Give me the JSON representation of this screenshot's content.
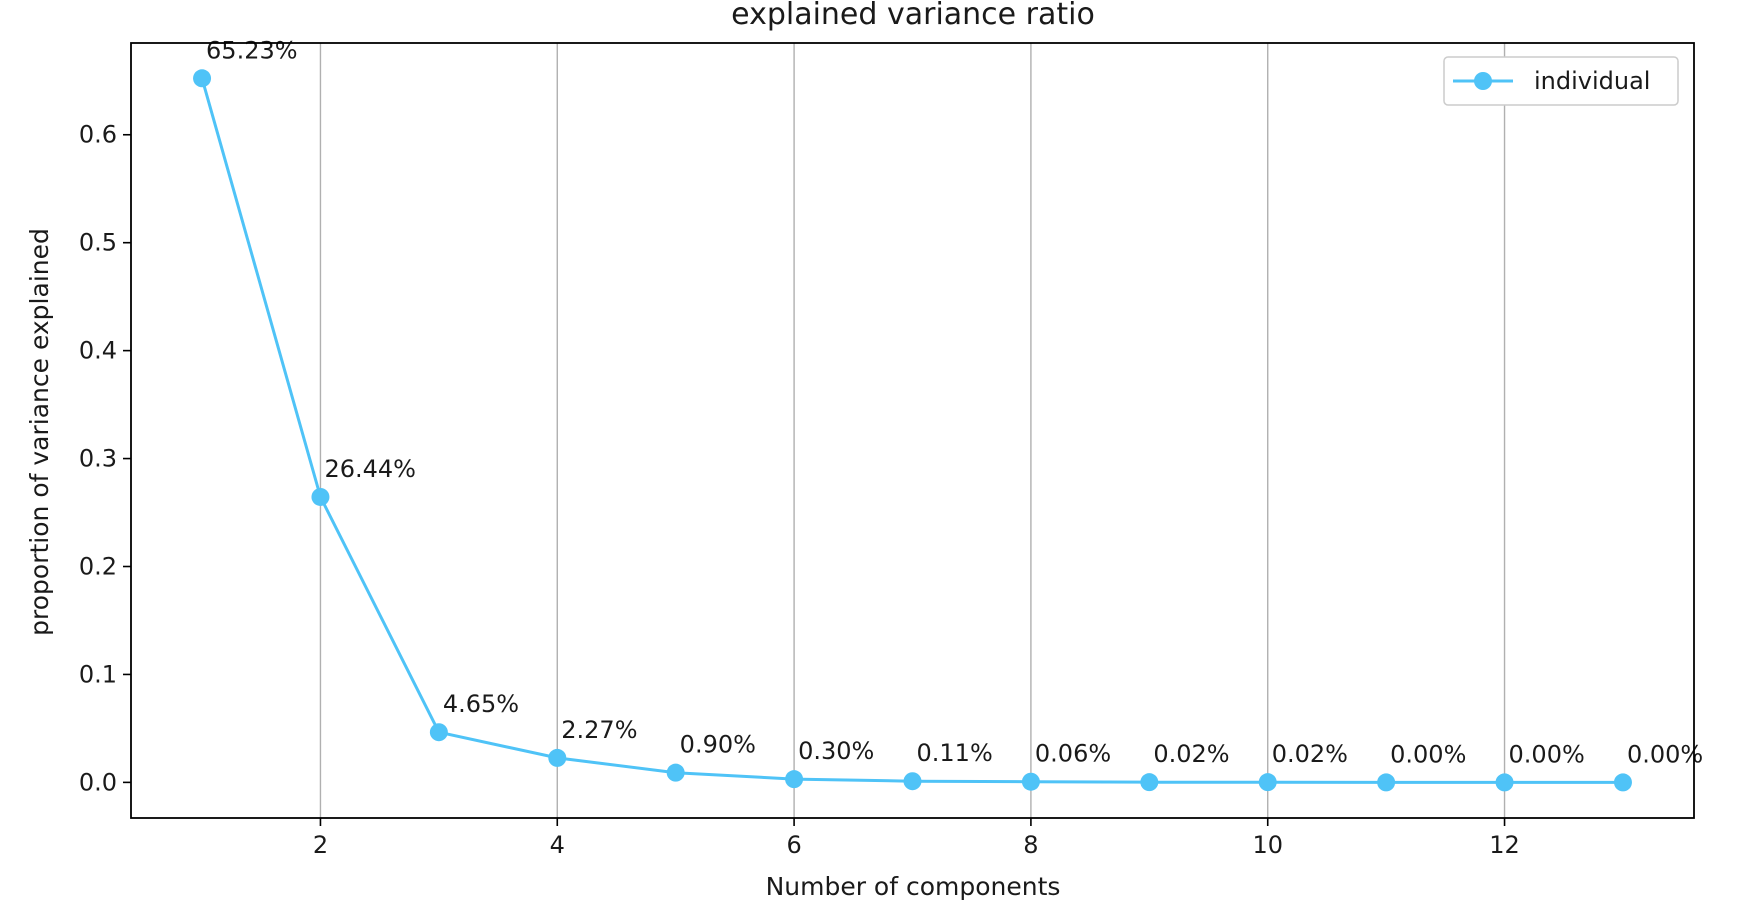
{
  "chart_data": {
    "type": "line",
    "title": "explained variance ratio",
    "xlabel": "Number of components",
    "ylabel": "proportion of variance explained",
    "xlim": [
      0.4,
      13.6
    ],
    "ylim": [
      -0.033,
      0.685
    ],
    "x_ticks": [
      2,
      4,
      6,
      8,
      10,
      12
    ],
    "x_tick_labels": [
      "2",
      "4",
      "6",
      "8",
      "10",
      "12"
    ],
    "y_ticks": [
      0.0,
      0.1,
      0.2,
      0.3,
      0.4,
      0.5,
      0.6
    ],
    "y_tick_labels": [
      "0.0",
      "0.1",
      "0.2",
      "0.3",
      "0.4",
      "0.5",
      "0.6"
    ],
    "grid": "vertical",
    "legend_position": "top-right",
    "x": [
      1,
      2,
      3,
      4,
      5,
      6,
      7,
      8,
      9,
      10,
      11,
      12,
      13
    ],
    "series": [
      {
        "name": "individual",
        "color": "#4fc3f7",
        "marker": "circle",
        "values": [
          0.6523,
          0.2644,
          0.0465,
          0.0227,
          0.009,
          0.003,
          0.0011,
          0.0006,
          0.0002,
          0.0002,
          0.0,
          0.0,
          0.0
        ]
      }
    ],
    "data_labels": [
      "65.23%",
      "26.44%",
      "4.65%",
      "2.27%",
      "0.90%",
      "0.30%",
      "0.11%",
      "0.06%",
      "0.02%",
      "0.02%",
      "0.00%",
      "0.00%",
      "0.00%"
    ]
  }
}
